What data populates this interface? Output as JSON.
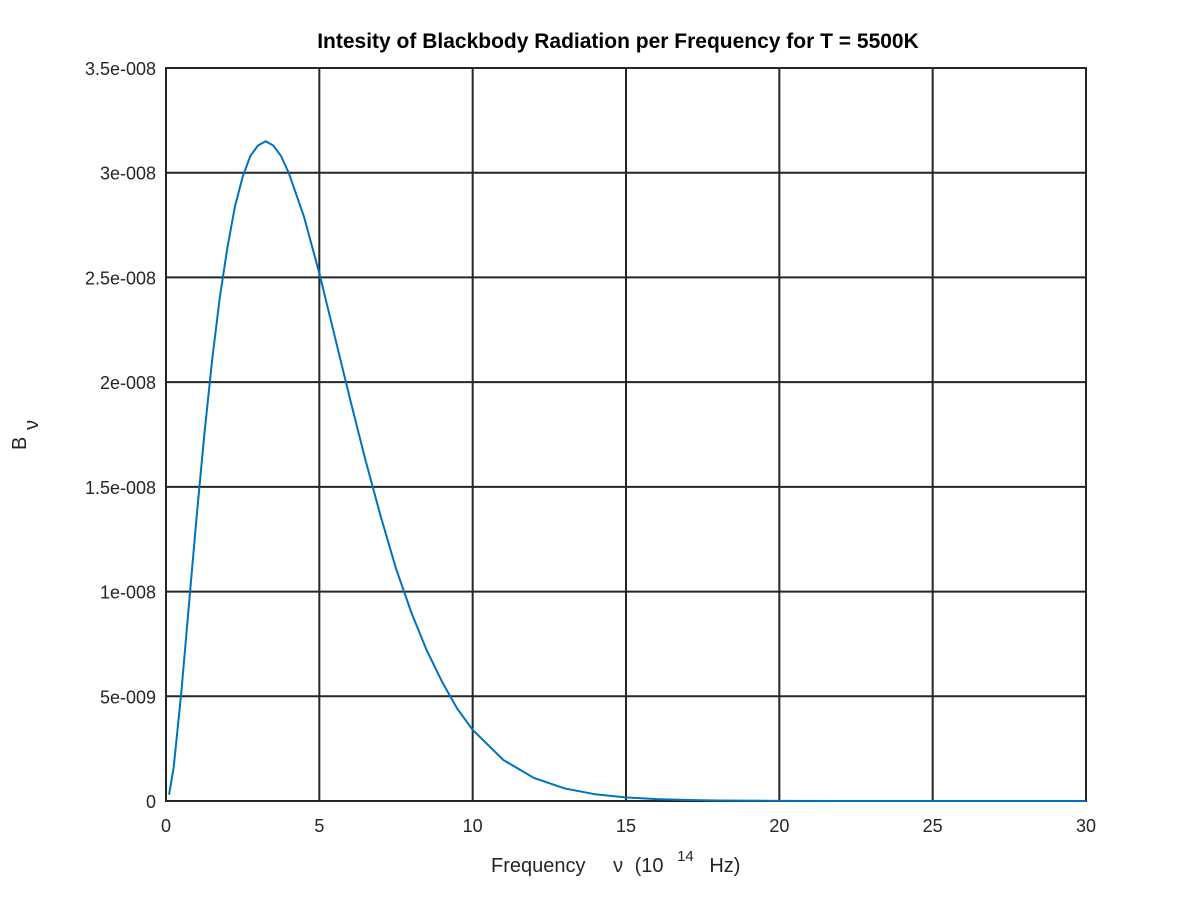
{
  "chart_data": {
    "type": "line",
    "title": "Intesity of Blackbody Radiation per Frequency for T = 5500K",
    "xlabel": {
      "prefix": "Frequency",
      "symbol": "ν",
      "paren_open": "(10",
      "exponent": "14",
      "unit": "Hz)"
    },
    "ylabel": {
      "base": "B",
      "subscript": "ν"
    },
    "xlim": [
      0,
      30
    ],
    "ylim": [
      0,
      3.5e-08
    ],
    "x_ticks": [
      0,
      5,
      10,
      15,
      20,
      25,
      30
    ],
    "x_tick_labels": [
      "0",
      "5",
      "10",
      "15",
      "20",
      "25",
      "30"
    ],
    "y_ticks": [
      0,
      5e-09,
      1e-08,
      1.5e-08,
      2e-08,
      2.5e-08,
      3e-08,
      3.5e-08
    ],
    "y_tick_labels": [
      "0",
      "5e-009",
      "1e-008",
      "1.5e-008",
      "2e-008",
      "2.5e-008",
      "3e-008",
      "3.5e-008"
    ],
    "grid": true,
    "color": "#0072bd",
    "series": [
      {
        "x": [
          0.1,
          0.25,
          0.5,
          0.75,
          1.0,
          1.25,
          1.5,
          1.75,
          2.0,
          2.25,
          2.5,
          2.75,
          3.0,
          3.25,
          3.5,
          3.75,
          4.0,
          4.5,
          5.0,
          5.5,
          6.0,
          6.5,
          7.0,
          7.5,
          8.0,
          8.5,
          9.0,
          9.5,
          10.0,
          11.0,
          12.0,
          13.0,
          14.0,
          15.0,
          16.0,
          17.0,
          18.0,
          20.0,
          22.0,
          25.0,
          28.0,
          30.0
        ],
        "y": [
          3e-10,
          1.6e-09,
          5.2e-09,
          9.4e-09,
          1.36e-08,
          1.75e-08,
          2.1e-08,
          2.4e-08,
          2.64e-08,
          2.84e-08,
          2.98e-08,
          3.08e-08,
          3.13e-08,
          3.15e-08,
          3.13e-08,
          3.08e-08,
          3e-08,
          2.79e-08,
          2.52e-08,
          2.22e-08,
          1.92e-08,
          1.63e-08,
          1.36e-08,
          1.11e-08,
          9e-09,
          7.2e-09,
          5.7e-09,
          4.4e-09,
          3.4e-09,
          1.96e-09,
          1.1e-09,
          6e-10,
          3.2e-10,
          1.7e-10,
          9e-11,
          4.5e-11,
          2.2e-11,
          5e-12,
          1.1e-12,
          1e-13,
          1e-14,
          1e-15
        ]
      }
    ]
  }
}
